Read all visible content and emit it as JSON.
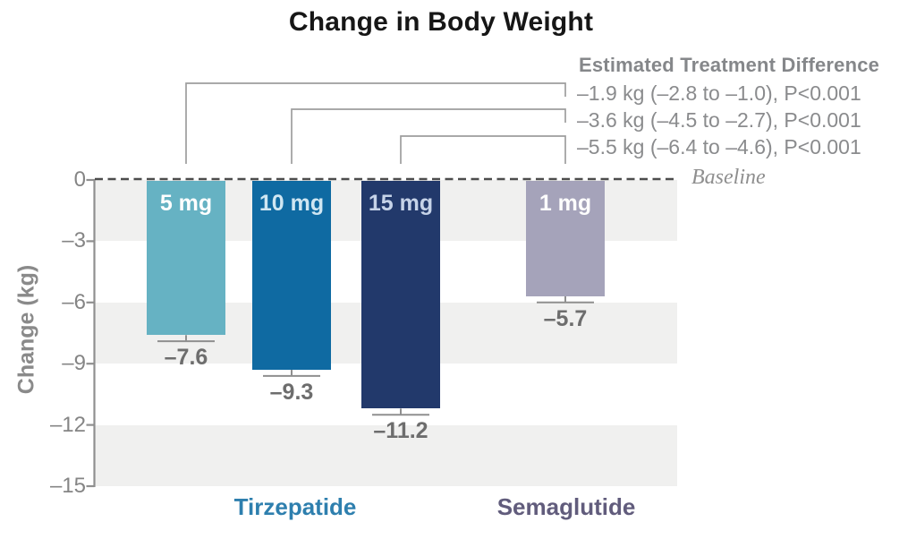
{
  "title": "Change in Body Weight",
  "etd": {
    "header": "Estimated Treatment Difference",
    "lines": [
      "–1.9 kg (–2.8 to –1.0), P<0.001",
      "–3.6 kg (–4.5 to –2.7), P<0.001",
      "–5.5 kg (–6.4 to –4.6), P<0.001"
    ]
  },
  "baseline_label": "Baseline",
  "y_axis": {
    "label": "Change (kg)",
    "tick_labels": [
      "0",
      "–3",
      "–6",
      "–9",
      "–12",
      "–15"
    ]
  },
  "groups": [
    {
      "label": "Tirzepatide",
      "color": "#2e7fae"
    },
    {
      "label": "Semaglutide",
      "color": "#615c7c"
    }
  ],
  "chart_data": {
    "type": "bar",
    "title": "Change in Body Weight",
    "xlabel": "",
    "ylabel": "Change (kg)",
    "ylim": [
      -15,
      0
    ],
    "yticks": [
      0,
      -3,
      -6,
      -9,
      -12,
      -15
    ],
    "gray_bands": [
      [
        0,
        -3
      ],
      [
        -6,
        -9
      ],
      [
        -12,
        -15
      ]
    ],
    "baseline": 0,
    "categories": [
      "Tirzepatide 5 mg",
      "Tirzepatide 10 mg",
      "Tirzepatide 15 mg",
      "Semaglutide 1 mg"
    ],
    "bars": [
      {
        "label": "5 mg",
        "value": -7.6,
        "value_label": "–7.6",
        "error_kg": 0.3,
        "color": "#66b2c3",
        "label_color": "#ffffff"
      },
      {
        "label": "10 mg",
        "value": -9.3,
        "value_label": "–9.3",
        "error_kg": 0.3,
        "color": "#0f6aa2",
        "label_color": "#cfe6f2"
      },
      {
        "label": "15 mg",
        "value": -11.2,
        "value_label": "–11.2",
        "error_kg": 0.3,
        "color": "#22396b",
        "label_color": "#c6d3e8"
      },
      {
        "label": "1 mg",
        "value": -5.7,
        "value_label": "–5.7",
        "error_kg": 0.3,
        "color": "#a5a3ba",
        "label_color": "#fdfdfd"
      }
    ],
    "comparisons": [
      {
        "bar_index": 0,
        "vs_bar_index": 3,
        "text": "–1.9 kg (–2.8 to –1.0), P<0.001"
      },
      {
        "bar_index": 1,
        "vs_bar_index": 3,
        "text": "–3.6 kg (–4.5 to –2.7), P<0.001"
      },
      {
        "bar_index": 2,
        "vs_bar_index": 3,
        "text": "–5.5 kg (–6.4 to –4.6), P<0.001"
      }
    ],
    "legend_position": "none",
    "grid": false
  }
}
